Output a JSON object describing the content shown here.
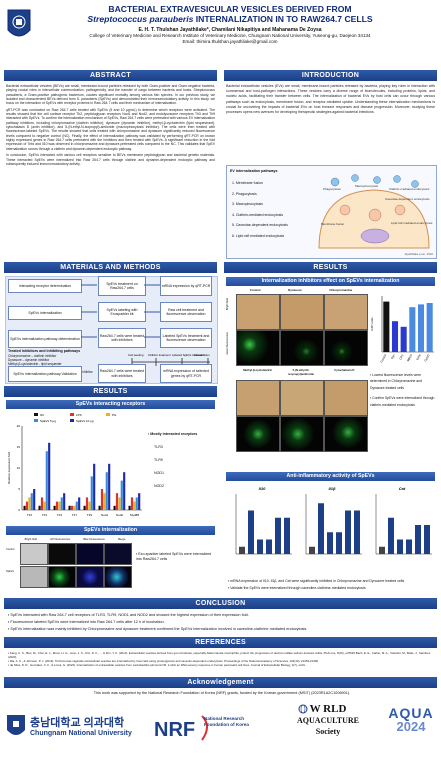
{
  "title": {
    "line1": "BACTERIAL EXTRAVESICULAR VESICLES DERIVED FROM",
    "line2_italic": "Streptococcus parauberis",
    "line2_rest": " INTERNALIZATION IN TO RAW264.7 CELLS"
  },
  "authors": {
    "names": "E. H. T. Thulshan Jayathilake*, Chamilani Nikapitiya and Mahanama De Zoysa",
    "affiliation": "College of Veterinary Medicine and Research Institute of Veterinary Medicine, Chungnam National University, Yuseong-gu, Daejeon 34134",
    "email": "Email: thimira.thulshan.jayathilake@gmail.com"
  },
  "sections": {
    "abstract": "ABSTRACT",
    "introduction": "INTRODUCTION",
    "materials": "MATERIALS AND METHODS",
    "results": "RESULTS",
    "results_left": "RESULTS",
    "conclusion": "CONCLUSION",
    "references": "REFERENCES",
    "acknowledgement": "Acknowledgement"
  },
  "abstract": {
    "p1": "Bacterial extracellular vesicles (BEVs) are small, membrane-bound particles released by both Gram-positive and Gram-negative bacteria, playing crucial roles in intercellular communication, pathogenicity, and the transfer of cargo between bacteria and hosts. Streptococcus parauberis, a Gram-positive pathogenic bacterium, causes significant mortality among various fish species. In our previous study, we isolated and characterized BEVs derived from S. parauberis (SpEVs) and demonstrated their immunomodulatory activity. In this study, we focus on the interaction of SpEVs with receptor proteins in Raw 264.7 cells and their mechanism of internalization.",
    "p2": "qRT-PCR was conducted on Raw 264.7 cells treated with SpEVs (5 and 10 μg/mL) to determine which receptors were activated. The results showed that the cell surface receptor Tlr2, peptidoglycan receptors Nod1 and Nod2, and endolysosome receptors Tlr3 and Tlr9 interacted with SpEVs. To confirm the internalization mechanism of SpEVs, Raw 264.7 cells were pretreated with various EV internalization pathway inhibitors, including chlorpromazine (clathrin inhibitor), dynasore (dynamin inhibitor), methyl-β-cyclodextrin (lipid sequestrant), cytochalasin D (actin inhibitor), and 5-(N-ethyl-N-isopropyl)-amiloride (macropinocytosis inhibitor). The cells were then treated with fluorescence-labeled SpEVs. The results showed that cells treated with chlorpromazine and dynasore significantly reduced fluorescence levels compared to negative control (NC). Finally, the effect of internalization pathway was validated by performing qRT-PCR on known highly expressed genes in Raw 264.7 cells pretreated with the inhibitors and then treated with SpEVs. A significant reduction in the fold expression of Tnfα and Il10 was observed in chlorpromazine and dynasore-pretreated cells compared to the NC. This validates that SpEV internalization occurs through a clathrin and dynamin-dependent endocytic pathway.",
    "p3": "In conclusion, SpEVs interacted with various cell receptors sensitive to BEVs membrane peptidoglycan and bacterial genetic materials. These interacted SpEVs were internalized into Raw 264.7 cells through clathrin and dynamin-dependent endocytic pathway and subsequently induced immunomodulatory activity."
  },
  "introduction": {
    "p1": "Bacterial extracellular vesicles (EVs) are small, membrane-bound particles released by bacteria, playing key roles in interaction with commensal and host-pathogen interactions. These vesicles carry a diverse range of biomolecules, including proteins, lipids, and nucleic acids, facilitating their transfer between cells. The internalization of bacterial EVs by host cells can occur through various pathways such as endocytosis, membrane fusion, and receptor-mediated uptake. Understanding these internalization mechanisms is crucial for uncovering the impacts of bacterial EVs on host immune responses and disease progression. Moreover, studying these processes opens new avenues for developing therapeutic strategies against bacterial infections.",
    "pathway_title": "EV internalization pathways",
    "pathways": [
      "1.  Membrane fusion",
      "2.  Phagocytosis",
      "3.  Macropinocytosis",
      "4.  Clathrin-mediated endocytosis",
      "5.  Caveolae-dependent endocytosis",
      "6.  Lipid raft mediated endocytosis"
    ],
    "diagram_labels": [
      "Phagocytosis",
      "Macropinocytosis",
      "Clathrin-mediated endocytosis",
      "Caveolae-dependent endocytosis",
      "Lipid raft mediated endocytosis",
      "Membrane fusion"
    ],
    "citation": "Jayathilake et al., 2022"
  },
  "methods": {
    "receptor_flow": [
      "Interacting receptor determination",
      "SpEVs treatment on Raw264.7 cells",
      "mRNA expression by qRT-PCR"
    ],
    "internalization_flow": [
      "SpEVs internalization",
      "SpEVs labeling with Exosparkler kit",
      "Raw cell treatment and fluorescence observation"
    ],
    "pathway_flow": [
      "SpEVs internalization pathway determination",
      "Raw264.7 cells were treated with inhibitors",
      "Labeled SpEVs treatment and fluorescence observation"
    ],
    "inhibitors_title": "Treated inhibitors and inhibiting pathways",
    "inhibitors": [
      "Chlorpromazine – clathrin inhibitor",
      "Dynasore – dynamin inhibitor",
      "Methyl-β-cyclodextrin - lipid sequester",
      "Cytochalasin D - actin inhibitor",
      "5(N-ethyl-N-isopropyl)-amiloride - macropinocytosis inhibitor"
    ],
    "timeline": [
      "Cell seeding",
      "Inhibitor treatment",
      "Labeled SpEVs treatment",
      "Visualization"
    ],
    "validation_flow": [
      "SpEVs internalization pathway Validation",
      "Raw264.7 cells were treated with inhibitors",
      "mRNA expression of selected genes by qRT-PCR"
    ]
  },
  "results_left": {
    "receptors_title": "SpEVs interacting receptors",
    "legend": [
      "NC",
      "LPS",
      "PG",
      "SpEVs 5 μg",
      "SpEVs 10 μg"
    ],
    "ylabel": "Relative expression fold",
    "bullets": [
      "Mostly interacted receptors",
      "TLR3",
      "TLR9",
      "NOD1",
      "NOD2"
    ],
    "intern_title": "SpEVs internalization",
    "col_labels": [
      "Bright field",
      "GP Fluorescence",
      "Blue Fluorescence",
      "Merge"
    ],
    "row_labels": [
      "Control",
      "SpEVs"
    ],
    "intern_text": "Exo-sparkler labeled SpEVs were internalized into Raw264.7 cells"
  },
  "chart_data": {
    "type": "bar",
    "title": "",
    "xlabel": "",
    "ylabel": "Relative expression fold",
    "categories": [
      "Tlr2",
      "Tlr3",
      "Tlr4",
      "Tlr7",
      "Tlr9",
      "Nod1",
      "Nod2",
      "Myd88"
    ],
    "series": [
      {
        "name": "NC",
        "values": [
          1,
          1,
          1,
          1,
          1,
          1,
          1,
          1
        ]
      },
      {
        "name": "LPS",
        "values": [
          2,
          3,
          2,
          1,
          3,
          5,
          4,
          3
        ]
      },
      {
        "name": "PG",
        "values": [
          3,
          2,
          2,
          1,
          2,
          4,
          3,
          2
        ]
      },
      {
        "name": "SpEVs 5 μg",
        "values": [
          4,
          14,
          3,
          2,
          8,
          9,
          7,
          3
        ]
      },
      {
        "name": "SpEVs 10 μg",
        "values": [
          5,
          16,
          4,
          3,
          11,
          11,
          9,
          4
        ]
      }
    ],
    "ylim": [
      0,
      20
    ],
    "legend": "top",
    "colors": [
      "#111111",
      "#e03030",
      "#f0b020",
      "#3a8ad8",
      "#1c2ca8"
    ]
  },
  "results_right": {
    "inhib_title": "Internalization inhibitors effect on SpEVs internalization",
    "top_labels": [
      "Control",
      "Dynasore",
      "Chlorpromazine"
    ],
    "bottom_labels": [
      "Methyl-β-cyclodextrin",
      "5-(N-ethyl-N-isopropyl)amiloride",
      "Cytochalasin D"
    ],
    "row_labels": [
      "Bright field",
      "Green fluorescence"
    ],
    "bar_ylabel": "GFP units",
    "bar_categories": [
      "Control",
      "Dyn",
      "CPZ",
      "MβCD",
      "EIPA",
      "CytoD"
    ],
    "bar_values": [
      1800,
      1100,
      900,
      1600,
      1700,
      1750
    ],
    "bullets": [
      "Lowest fluorescence levels were determined in Chlorpromazine and Dynasore-treated cells",
      "Confirm SpEVs were internalized through clathrin-mediated endocytosis"
    ],
    "anti_title": "Anti-inflammatory activity of SpEVs",
    "gene_titles": [
      "Il10",
      "Il1β",
      "Cat"
    ],
    "anti_bullets": [
      "mRNA expression of Il10, Il1β, and Cat were significantly inhibited in Chlorpromazine and Dynozore treated cells",
      "Validate the SpEVs were internalized through caveoline-clathrine-mediated endocytosis"
    ]
  },
  "conclusion": [
    "SpEVs interacted with Raw 264.7 cell receptors of TLR3, TLR9, NOD1 and NOD2 and showed the highest expression of their expression fold.",
    "Fluorescence labeled SpEVs were internalized into Raw 264.7 cells after 12 h of incubation.",
    "SpEVs internalization was mainly inhibited by Chlorpromazine and dynasore treatment confirmed the SpEVs internalization involved in caveoline-clathrine mediated endocytosis."
  ],
  "references": [
    "Kang, C. S., Ban, M., Choi, E. J., Moon, H. G., Jeon, J. S., Kim, D. K., ... & Kim, Y. K. (2013). Extracellular vesicles derived from gut microbiota, especially Akkermansia muciniphila, protect the progression of dextran sulfate sodium-induced colitis. PloS one, 8(10), e76520.Bach, E. E., Carlier, M. A., Yokoishi, M., Batis, J., Sanchez. (2020)",
    "Rai, A. K., & Johnson, P. J. (2019). Trichomonas vaginalis extracellular vesicles are internalized by host cells using proteoglycans and caveolin-dependent endocytosis. Proceedings of the National Academy of Sciences, 116(43), 21354-21360.",
    "da Silva, D. R., Gonzalez, C. F., & Lorca, G. (2023). Internalization of extracellular vesicles from Lactobacillus johnsonii N6. 2 elicit an RNA sensory response in human pancreatic cell lines. Journal of Extracellular Biology, 2(7), e101."
  ],
  "acknowledgement": "This work was supported by the National Research Foundation of Korea (NRF) grants, funded by the Korean government (MSIT) (2023R1A2C1006901).",
  "footer": {
    "cnu_korean": "충남대학교 의과대학",
    "cnu": "Chungnam National University",
    "nrf": "NRF",
    "nrf_name": "National Research Foundation of Korea",
    "was1": "W RLD",
    "was2": "AQUACULTURE",
    "was3": "Society",
    "aqua1": "AQUA",
    "aqua2": "2024"
  }
}
